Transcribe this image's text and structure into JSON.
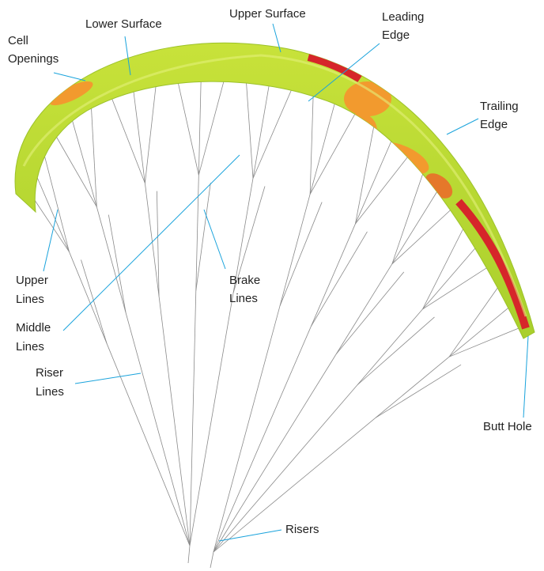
{
  "labels": [
    {
      "lines": [
        "Cell",
        "Openings"
      ]
    },
    {
      "lines": [
        "Lower Surface"
      ]
    },
    {
      "lines": [
        "Upper Surface"
      ]
    },
    {
      "lines": [
        "Leading",
        "Edge"
      ]
    },
    {
      "lines": [
        "Trailing",
        "Edge"
      ]
    },
    {
      "lines": [
        "Upper",
        "Lines"
      ]
    },
    {
      "lines": [
        "Middle",
        "Lines"
      ]
    },
    {
      "lines": [
        "Brake",
        "Lines"
      ]
    },
    {
      "lines": [
        "Riser",
        "Lines"
      ]
    },
    {
      "lines": [
        "Butt Hole"
      ]
    },
    {
      "lines": [
        "Risers"
      ]
    }
  ]
}
